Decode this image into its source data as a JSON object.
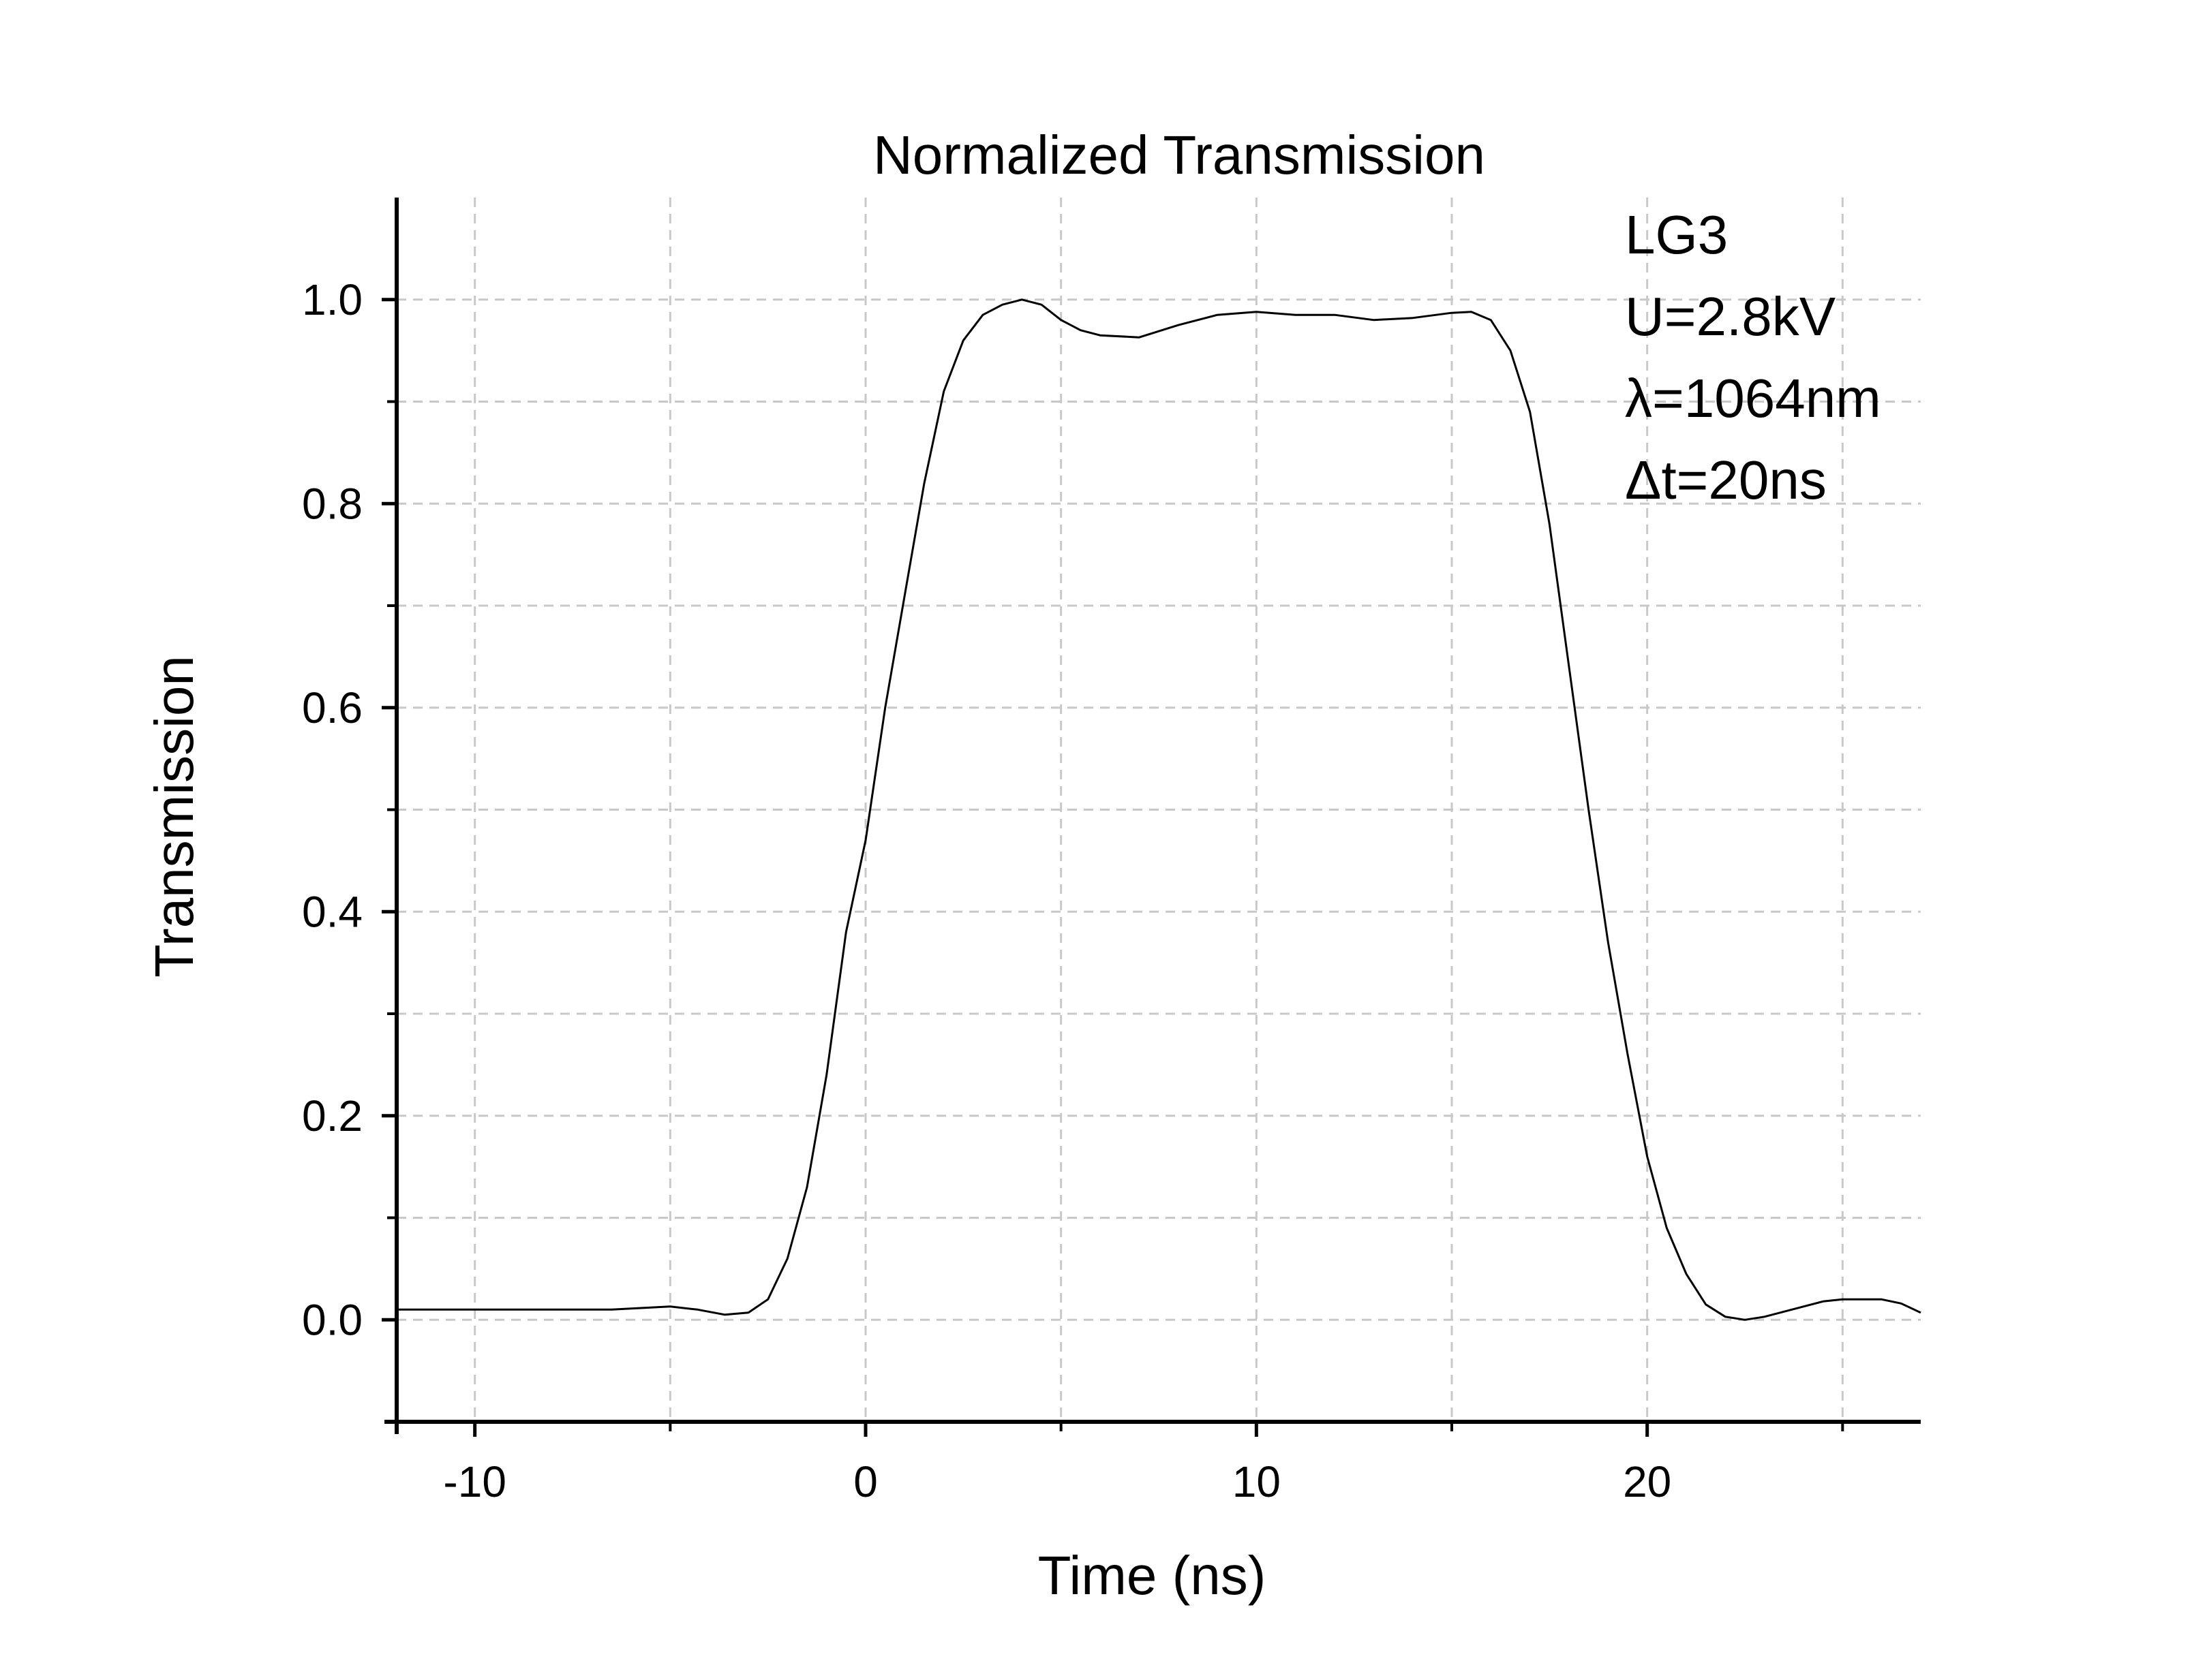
{
  "chart_data": {
    "type": "line",
    "title": "Normalized Transmission",
    "xlabel": "Time (ns)",
    "ylabel": "Transmission",
    "xlim": [
      -12,
      27
    ],
    "ylim": [
      -0.1,
      1.1
    ],
    "xticks": [
      -10,
      0,
      10,
      20
    ],
    "xtick_labels": [
      "-10",
      "0",
      "10",
      "20"
    ],
    "yticks": [
      0.0,
      0.2,
      0.4,
      0.6,
      0.8,
      1.0
    ],
    "ytick_labels": [
      "0.0",
      "0.2",
      "0.4",
      "0.6",
      "0.8",
      "1.0"
    ],
    "x_minor_ticks": [
      -5,
      5,
      15,
      25
    ],
    "y_minor_ticks": [
      0.1,
      0.3,
      0.5,
      0.7,
      0.9
    ],
    "grid": true,
    "grid_style": "dashed",
    "annotations": [
      "LG3",
      "U=2.8kV",
      "λ=1064nm",
      "Δt=20ns"
    ],
    "line_color": "#000000",
    "series": [
      {
        "x": [
          -12,
          -10,
          -8,
          -6.5,
          -5.5,
          -5,
          -4.3,
          -3.6,
          -3,
          -2.5,
          -2,
          -1.5,
          -1,
          -0.5,
          0,
          0.5,
          1,
          1.5,
          2,
          2.5,
          3,
          3.5,
          4,
          4.5,
          5,
          5.5,
          6,
          7,
          8,
          9,
          10,
          11,
          12,
          13,
          14,
          15,
          15.5,
          16,
          16.5,
          17,
          17.5,
          18,
          18.5,
          19,
          19.5,
          20,
          20.5,
          21,
          21.5,
          22,
          22.5,
          23,
          23.5,
          24,
          24.5,
          25,
          25.5,
          26,
          26.5,
          27
        ],
        "y": [
          0.01,
          0.01,
          0.01,
          0.01,
          0.012,
          0.013,
          0.01,
          0.005,
          0.007,
          0.02,
          0.06,
          0.13,
          0.24,
          0.38,
          0.47,
          0.6,
          0.71,
          0.82,
          0.91,
          0.96,
          0.985,
          0.995,
          1.0,
          0.995,
          0.98,
          0.97,
          0.965,
          0.963,
          0.975,
          0.985,
          0.988,
          0.985,
          0.985,
          0.98,
          0.982,
          0.987,
          0.988,
          0.98,
          0.95,
          0.89,
          0.78,
          0.64,
          0.5,
          0.37,
          0.26,
          0.16,
          0.09,
          0.045,
          0.015,
          0.003,
          0.0,
          0.003,
          0.008,
          0.013,
          0.018,
          0.02,
          0.02,
          0.02,
          0.016,
          0.007
        ]
      }
    ]
  }
}
